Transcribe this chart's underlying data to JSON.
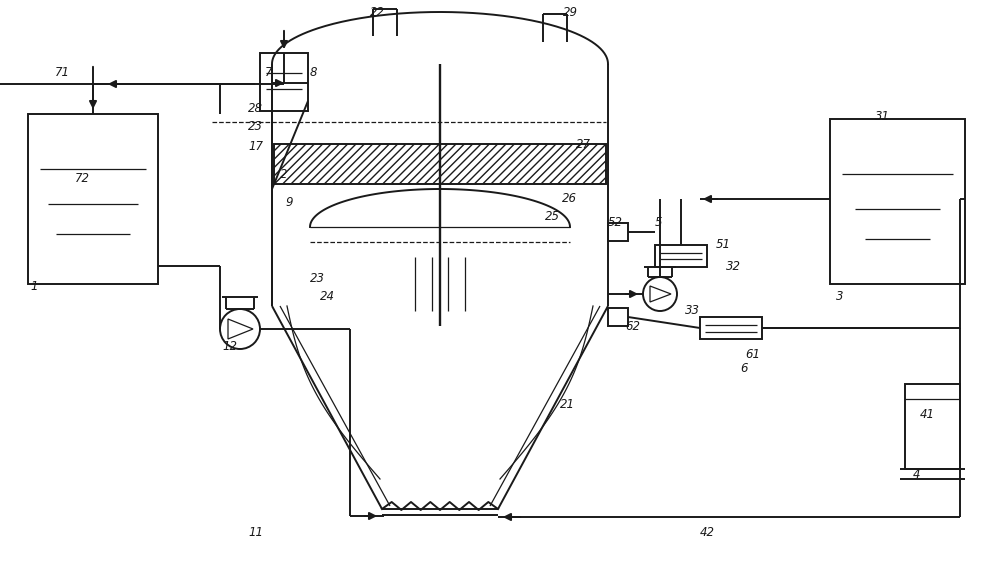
{
  "bg_color": "#ffffff",
  "lc": "#1a1a1a",
  "lw": 1.4,
  "tlw": 0.9,
  "fs": 8.5
}
